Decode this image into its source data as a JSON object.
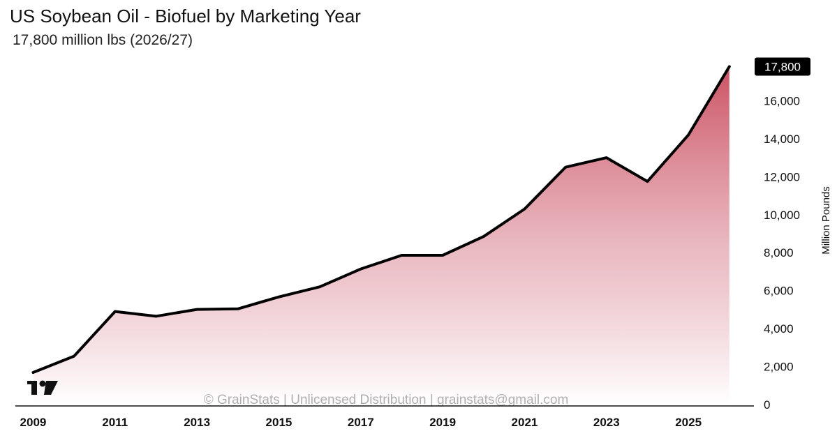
{
  "title": "US Soybean Oil - Biofuel by Marketing Year",
  "subtitle": "17,800 million lbs (2026/27)",
  "watermark": "© GrainStats | Unlicensed Distribution | grainstats@gmail.com",
  "logo_icon": "tradingview-logo-icon",
  "colors": {
    "line": "#000000",
    "area_top": "#c94a5c",
    "area_bottom": "#ffffff",
    "last_value_badge": "#000000"
  },
  "chart_data": {
    "type": "area",
    "title": "US Soybean Oil - Biofuel by Marketing Year",
    "subtitle": "17,800 million lbs (2026/27)",
    "xlabel": "",
    "ylabel": "Million Pounds",
    "x": [
      2009,
      2010,
      2011,
      2012,
      2013,
      2014,
      2015,
      2016,
      2017,
      2018,
      2019,
      2020,
      2021,
      2022,
      2023,
      2024,
      2025,
      2026
    ],
    "values": [
      1690,
      2550,
      4900,
      4650,
      5010,
      5040,
      5670,
      6200,
      7140,
      7860,
      7860,
      8850,
      10300,
      12500,
      13000,
      11750,
      14200,
      17800
    ],
    "x_tick_labels": [
      "2009",
      "2011",
      "2013",
      "2015",
      "2017",
      "2019",
      "2021",
      "2023",
      "2025"
    ],
    "y_tick_labels": [
      "0",
      "2,000",
      "4,000",
      "6,000",
      "8,000",
      "10,000",
      "12,000",
      "14,000",
      "16,000"
    ],
    "ylim": [
      0,
      18000
    ],
    "xlim": [
      2008.6,
      2026.6
    ],
    "y_axis_position": "right",
    "grid": false,
    "last_value_label": "17,800"
  }
}
